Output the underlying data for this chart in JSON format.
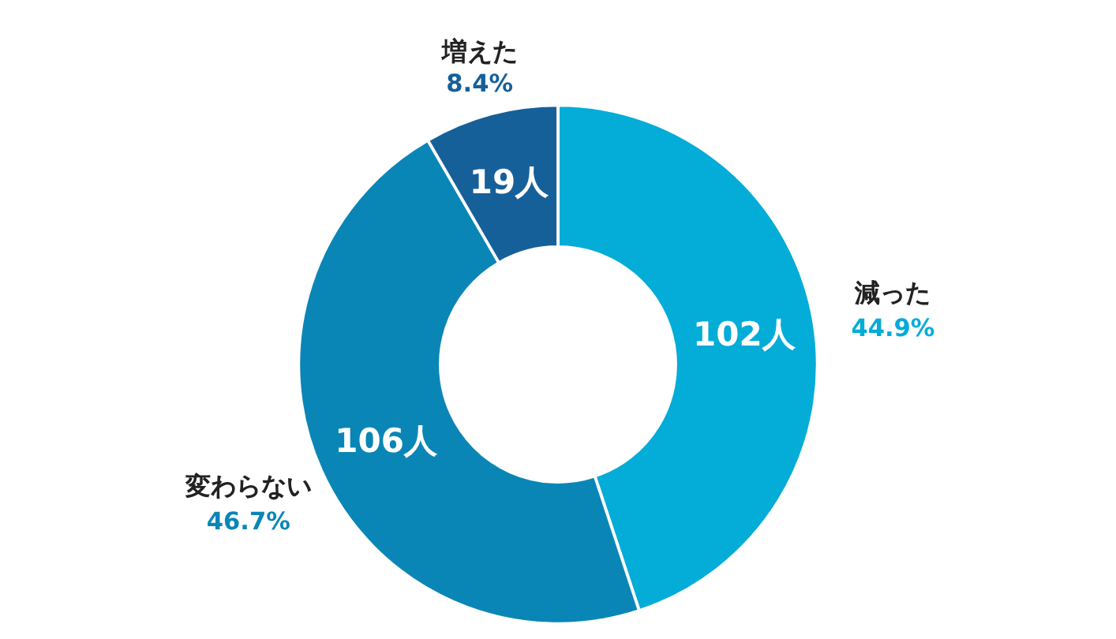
{
  "chart_data": {
    "type": "donut",
    "categories": [
      "減った",
      "変わらない",
      "増えた"
    ],
    "values": [
      102,
      106,
      19
    ],
    "colors": [
      "#04acd8",
      "#0a86b6",
      "#16609a"
    ],
    "value_labels": [
      "102人",
      "106人",
      "19人"
    ],
    "annotations": [
      "44.9%",
      "46.7%",
      "8.4%"
    ]
  }
}
